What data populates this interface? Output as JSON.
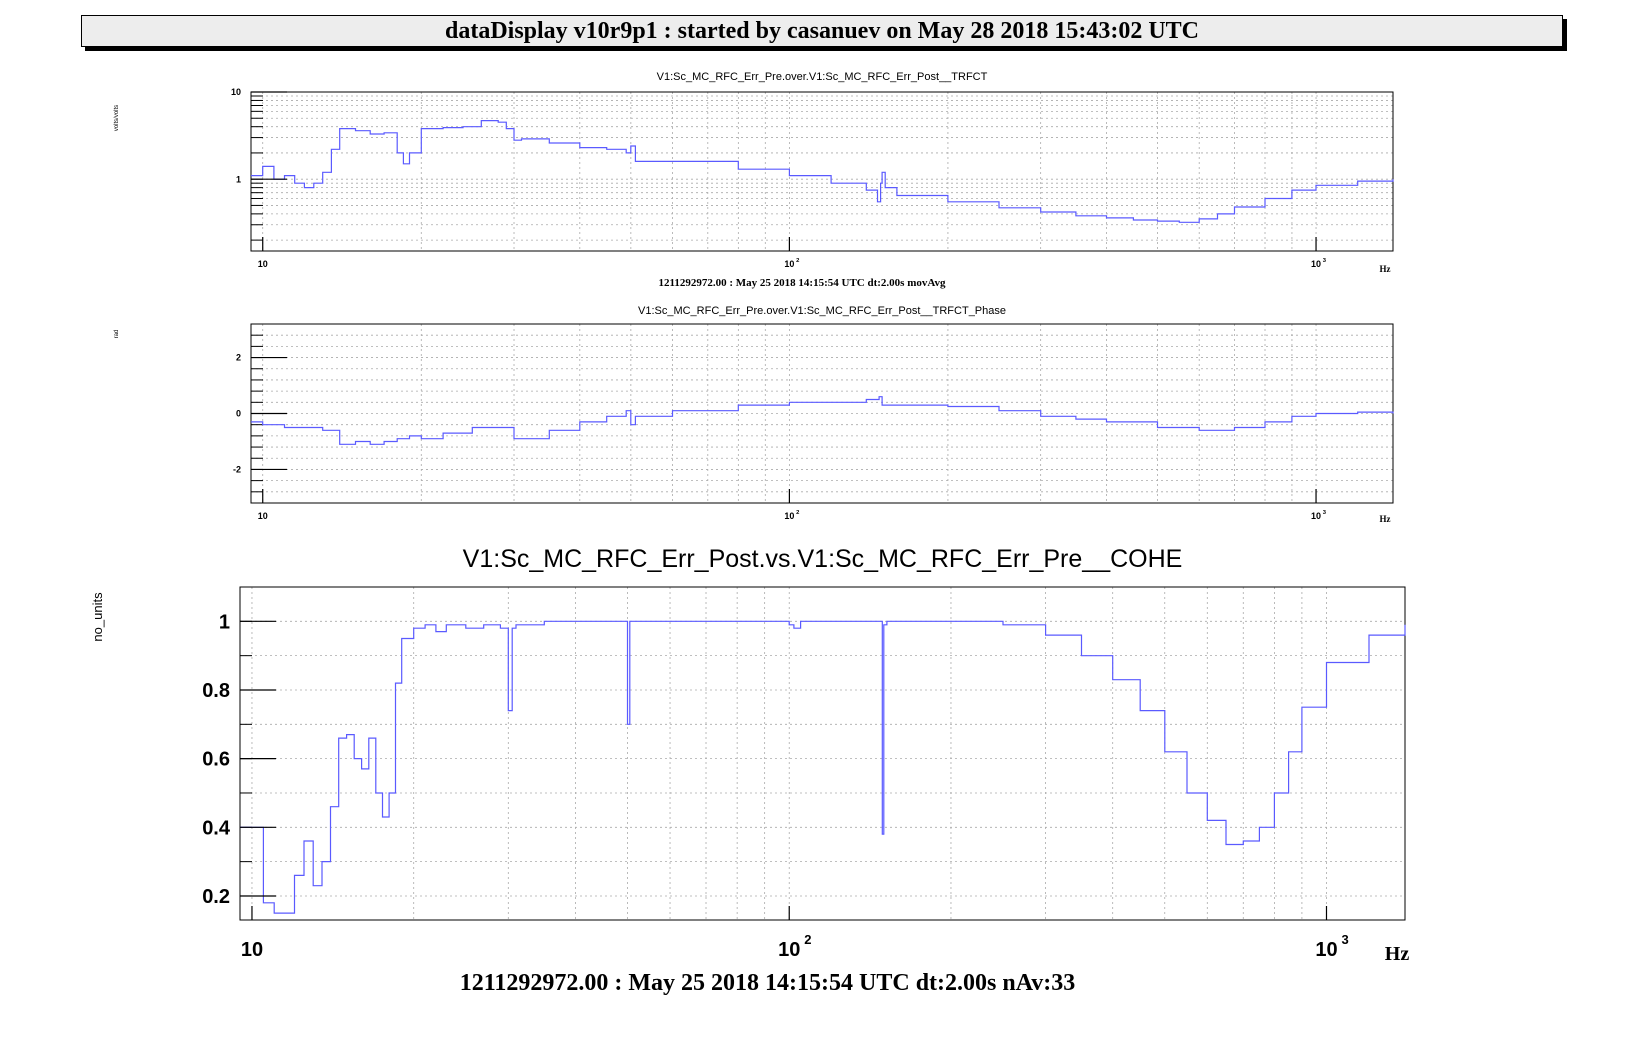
{
  "header": {
    "title": "dataDisplay v10r9p1 : started by casanuev on May 28 2018 15:43:02 UTC"
  },
  "colors": {
    "trace": "#5a5aff",
    "grid": "#aaaaaa",
    "axis": "#000000"
  },
  "chart_data": [
    {
      "type": "line",
      "title": "V1:Sc_MC_RFC_Err_Pre.over.V1:Sc_MC_RFC_Err_Post__TRFCT",
      "ylabel": "volts/volts",
      "xlabel": "Hz",
      "x_scale": "log",
      "y_scale": "log",
      "xlim": [
        9.5,
        1400
      ],
      "ylim": [
        0.15,
        10
      ],
      "x_ticks": [
        {
          "v": 10,
          "label": "10"
        },
        {
          "v": 100,
          "label": "10"
        },
        {
          "v": 1000,
          "label": "10"
        }
      ],
      "x_tick_exponents": [
        "",
        "2",
        "3"
      ],
      "y_ticks": [
        {
          "v": 1,
          "label": "1"
        },
        {
          "v": 10,
          "label": "10"
        }
      ],
      "footer": "1211292972.00 : May 25 2018 14:15:54 UTC dt:2.00s movAvg",
      "grid": true,
      "series": [
        {
          "x": [
            9.5,
            10,
            10.5,
            11,
            11.5,
            12,
            12.5,
            13,
            13.5,
            14,
            15,
            16,
            17,
            18,
            18.5,
            19,
            20,
            22,
            24,
            26,
            28,
            29,
            30,
            31,
            35,
            40,
            45,
            49,
            50,
            51,
            60,
            80,
            100,
            120,
            140,
            147,
            149,
            150,
            152,
            160,
            200,
            250,
            300,
            350,
            400,
            450,
            500,
            550,
            600,
            650,
            700,
            800,
            900,
            1000,
            1200,
            1400
          ],
          "y": [
            1.1,
            1.4,
            1.0,
            1.1,
            0.9,
            0.8,
            0.9,
            1.2,
            2.2,
            3.8,
            3.6,
            3.3,
            3.4,
            2.0,
            1.5,
            2.0,
            3.8,
            3.9,
            4.0,
            4.7,
            4.5,
            3.8,
            2.8,
            2.9,
            2.6,
            2.3,
            2.2,
            2.0,
            2.4,
            1.6,
            1.6,
            1.3,
            1.1,
            0.9,
            0.75,
            0.55,
            0.9,
            1.2,
            0.8,
            0.65,
            0.55,
            0.47,
            0.42,
            0.38,
            0.36,
            0.34,
            0.33,
            0.32,
            0.35,
            0.4,
            0.48,
            0.6,
            0.75,
            0.85,
            0.95,
            1.0
          ]
        }
      ]
    },
    {
      "type": "line",
      "title": "V1:Sc_MC_RFC_Err_Pre.over.V1:Sc_MC_RFC_Err_Post__TRFCT_Phase",
      "ylabel": "rad",
      "xlabel": "Hz",
      "x_scale": "log",
      "xlim": [
        9.5,
        1400
      ],
      "ylim": [
        -3.2,
        3.2
      ],
      "x_ticks": [
        {
          "v": 10,
          "label": "10"
        },
        {
          "v": 100,
          "label": "10"
        },
        {
          "v": 1000,
          "label": "10"
        }
      ],
      "x_tick_exponents": [
        "",
        "2",
        "3"
      ],
      "y_ticks": [
        {
          "v": -2,
          "label": "-2"
        },
        {
          "v": 0,
          "label": "0"
        },
        {
          "v": 2,
          "label": "2"
        }
      ],
      "grid": true,
      "series": [
        {
          "x": [
            9.5,
            10,
            11,
            12,
            13,
            14,
            15,
            16,
            17,
            18,
            19,
            20,
            22,
            25,
            28,
            30,
            35,
            40,
            45,
            49,
            50,
            51,
            60,
            80,
            100,
            120,
            140,
            148,
            150,
            155,
            200,
            250,
            300,
            350,
            400,
            500,
            600,
            700,
            800,
            900,
            1000,
            1200,
            1400
          ],
          "y": [
            -0.3,
            -0.4,
            -0.5,
            -0.5,
            -0.6,
            -1.1,
            -1.0,
            -1.1,
            -1.0,
            -0.9,
            -0.8,
            -0.9,
            -0.7,
            -0.5,
            -0.5,
            -0.9,
            -0.6,
            -0.3,
            -0.1,
            0.1,
            -0.4,
            -0.1,
            0.1,
            0.3,
            0.4,
            0.4,
            0.5,
            0.6,
            0.3,
            0.3,
            0.25,
            0.1,
            -0.1,
            -0.2,
            -0.3,
            -0.5,
            -0.6,
            -0.5,
            -0.3,
            -0.1,
            0.0,
            0.05,
            0.0
          ]
        }
      ]
    },
    {
      "type": "line",
      "title": "V1:Sc_MC_RFC_Err_Post.vs.V1:Sc_MC_RFC_Err_Pre__COHE",
      "ylabel": "no_units",
      "xlabel": "Hz",
      "x_scale": "log",
      "xlim": [
        9.5,
        1400
      ],
      "ylim": [
        0.13,
        1.1
      ],
      "x_ticks": [
        {
          "v": 10,
          "label": "10"
        },
        {
          "v": 100,
          "label": "10"
        },
        {
          "v": 1000,
          "label": "10"
        }
      ],
      "x_tick_exponents": [
        "",
        "2",
        "3"
      ],
      "y_ticks": [
        {
          "v": 0.2,
          "label": "0.2"
        },
        {
          "v": 0.4,
          "label": "0.4"
        },
        {
          "v": 0.6,
          "label": "0.6"
        },
        {
          "v": 0.8,
          "label": "0.8"
        },
        {
          "v": 1.0,
          "label": "1"
        }
      ],
      "footer": "1211292972.00 : May 25 2018 14:15:54 UTC dt:2.00s nAv:33",
      "grid": true,
      "series": [
        {
          "x": [
            9.5,
            10,
            10.5,
            11,
            11.5,
            12,
            12.5,
            13,
            13.5,
            14,
            14.5,
            15,
            15.5,
            16,
            16.5,
            17,
            17.5,
            18,
            18.5,
            19,
            20,
            21,
            22,
            23,
            25,
            27,
            29,
            30,
            30.5,
            31,
            35,
            40,
            45,
            49,
            50,
            50.5,
            52,
            60,
            80,
            100,
            102,
            105,
            140,
            148,
            149,
            150,
            152,
            200,
            250,
            300,
            350,
            400,
            450,
            500,
            550,
            600,
            650,
            700,
            750,
            800,
            850,
            900,
            1000,
            1200,
            1400
          ],
          "y": [
            0.4,
            0.4,
            0.18,
            0.15,
            0.15,
            0.26,
            0.36,
            0.23,
            0.3,
            0.46,
            0.66,
            0.67,
            0.6,
            0.57,
            0.66,
            0.5,
            0.43,
            0.5,
            0.82,
            0.95,
            0.98,
            0.99,
            0.97,
            0.99,
            0.98,
            0.99,
            0.98,
            0.74,
            0.98,
            0.99,
            1.0,
            1.0,
            1.0,
            1.0,
            0.7,
            1.0,
            1.0,
            1.0,
            1.0,
            0.99,
            0.98,
            1.0,
            1.0,
            1.0,
            0.38,
            0.99,
            1.0,
            1.0,
            0.99,
            0.96,
            0.9,
            0.83,
            0.74,
            0.62,
            0.5,
            0.42,
            0.35,
            0.36,
            0.4,
            0.5,
            0.62,
            0.75,
            0.88,
            0.96,
            0.99
          ]
        }
      ]
    }
  ]
}
